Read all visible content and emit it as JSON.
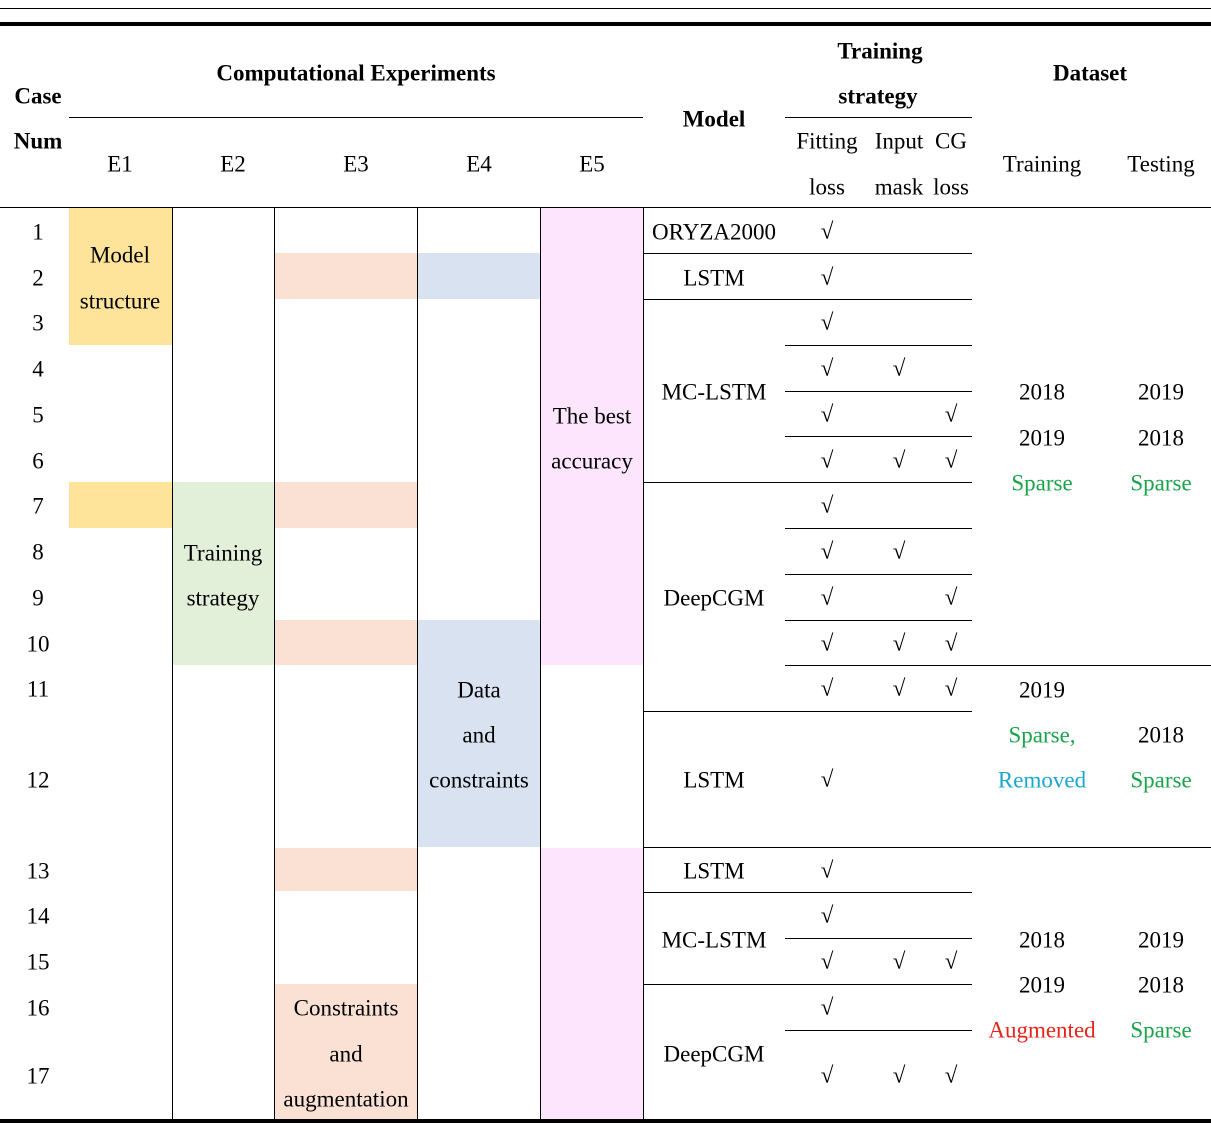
{
  "colors": {
    "e1_fill": "#fde49a",
    "e2_fill": "#e2efd9",
    "e3_fill": "#fbe1d3",
    "e4_fill": "#d9e2f1",
    "e5_fill": "#fde5fe",
    "sparse_green": "#1aa34a",
    "removed_blue": "#1aa7cf",
    "augmented_red": "#e8231b"
  },
  "header": {
    "case": "Case",
    "num": "Num",
    "comp_experiments": "Computational Experiments",
    "e1": "E1",
    "e2": "E2",
    "e3": "E3",
    "e4": "E4",
    "e5": "E5",
    "model": "Model",
    "training_strategy_1": "Training",
    "training_strategy_2": "strategy",
    "fitting_1": "Fitting",
    "fitting_2": "loss",
    "input_1": "Input",
    "input_2": "mask",
    "cg_1": "CG",
    "cg_2": "loss",
    "dataset": "Dataset",
    "training": "Training",
    "testing": "Testing"
  },
  "case_numbers": [
    "1",
    "2",
    "3",
    "4",
    "5",
    "6",
    "7",
    "8",
    "9",
    "10",
    "11",
    "12",
    "13",
    "14",
    "15",
    "16",
    "17"
  ],
  "experiment_labels": {
    "e1_1": "Model",
    "e1_2": "structure",
    "e2_1": "Training",
    "e2_2": "strategy",
    "e4_1": "Data",
    "e4_2": "and",
    "e4_3": "constraints",
    "e5_1": "The best",
    "e5_2": "accuracy",
    "e3_1": "Constraints",
    "e3_2": "and",
    "e3_3": "augmentation"
  },
  "models": {
    "m1": "ORYZA2000",
    "m2": "LSTM",
    "m3": "MC-LSTM",
    "m4": "DeepCGM",
    "m5": "LSTM",
    "m6": "LSTM",
    "m7": "MC-LSTM",
    "m8": "DeepCGM"
  },
  "check": "√",
  "dataset_values": {
    "g1_train_1": "2018",
    "g1_train_2": "2019",
    "g1_train_3": "Sparse",
    "g1_test_1": "2019",
    "g1_test_2": "2018",
    "g1_test_3": "Sparse",
    "g2_train_1": "2019",
    "g2_train_2": "Sparse,",
    "g2_train_3": "Removed",
    "g2_test_1": "2018",
    "g2_test_2": "Sparse",
    "g3_train_1": "2018",
    "g3_train_2": "2019",
    "g3_train_3": "Augmented",
    "g3_test_1": "2019",
    "g3_test_2": "2018",
    "g3_test_3": "Sparse"
  }
}
